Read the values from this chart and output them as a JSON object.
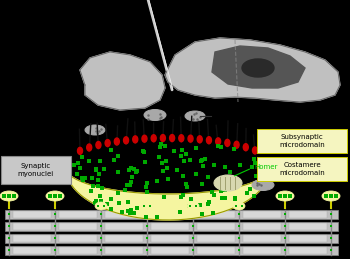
{
  "bg_color": "#000000",
  "nerve_body_color": "#c0c0c0",
  "nerve_dark_color": "#555555",
  "nerve_outline": "#444444",
  "synaptic_blob_color": "#f5f5a0",
  "receptor_color": "#cc0000",
  "green_dot_color": "#00aa00",
  "muscle_gray": "#b8b8b8",
  "muscle_dark": "#888888",
  "muscle_light": "#d0d0d0",
  "myonuclei_color": "#a0a0a0",
  "mitochondria_color": "#d8d8b0",
  "subsynaptic_label": "Subsynaptic\nmicrodomain",
  "costamere_label": "Costamere\nmicrodomain",
  "synaptic_label": "Synaptic\nmyonuclei",
  "homer_label": "Homer",
  "homer_color": "#00cc00"
}
